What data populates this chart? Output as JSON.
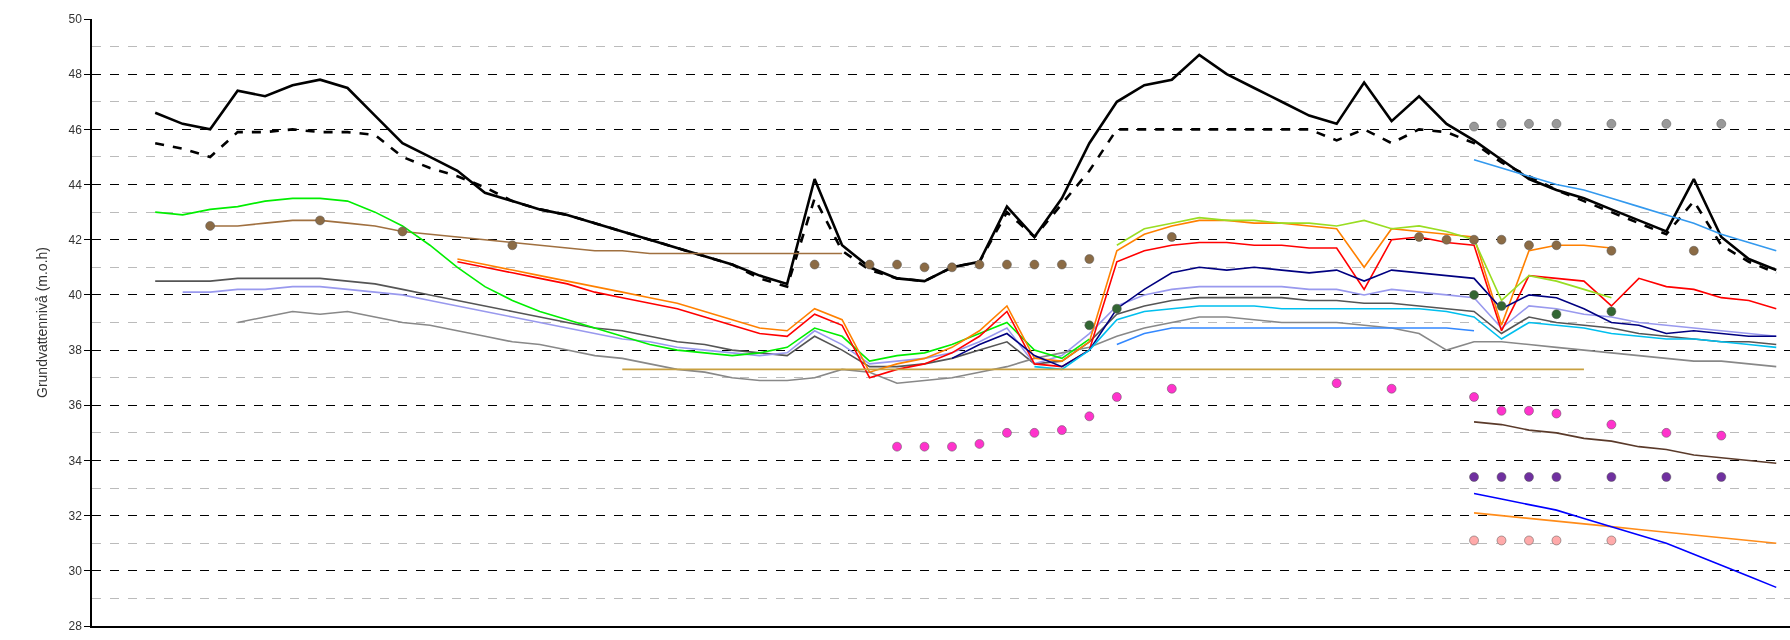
{
  "chart_data": {
    "type": "line",
    "ylabel": "Grundvattennivå (m.o.h)",
    "categories": [
      null,
      null,
      null,
      null,
      null,
      null,
      null,
      null,
      null,
      null,
      null,
      null,
      null,
      null,
      null,
      null,
      null,
      null,
      null,
      null,
      null,
      null,
      null,
      null,
      null,
      null,
      null,
      null,
      null,
      null,
      null,
      null,
      null,
      null,
      null,
      null,
      null,
      null,
      null,
      null,
      null,
      null,
      null,
      null,
      null,
      null,
      null,
      null,
      null,
      null,
      null,
      null,
      null,
      null,
      null,
      null,
      null,
      null,
      null,
      null
    ],
    "ylim": [
      28,
      50
    ],
    "yticks": [
      28,
      {
        "value": 29,
        "label": null
      },
      30,
      {
        "value": 31,
        "label": null
      },
      32,
      {
        "value": 33,
        "label": null
      },
      34,
      {
        "value": 35,
        "label": null
      },
      36,
      {
        "value": 37,
        "label": null
      },
      38,
      {
        "value": 39,
        "label": null
      },
      40,
      {
        "value": 41,
        "label": null
      },
      42,
      {
        "value": 43,
        "label": null
      },
      44,
      {
        "value": 45,
        "label": null
      },
      46,
      {
        "value": 47,
        "label": null
      },
      48,
      {
        "value": 49,
        "label": null
      },
      50
    ],
    "grid": "y",
    "tick_labels": "y",
    "series": [
      {
        "color": "#000000",
        "line_style": "solid",
        "values": [
          46.6,
          46.2,
          46.0,
          47.4,
          47.2,
          47.6,
          47.8,
          47.5,
          46.5,
          45.5,
          45.0,
          44.5,
          43.7,
          43.4,
          43.1,
          42.9,
          42.6,
          42.3,
          42.0,
          41.7,
          41.4,
          41.1,
          40.7,
          40.4,
          44.2,
          41.8,
          41.0,
          40.6,
          40.5,
          41.0,
          41.2,
          43.2,
          42.1,
          43.5,
          45.5,
          47.0,
          47.6,
          47.8,
          48.7,
          48.0,
          47.5,
          47.0,
          46.5,
          46.2,
          47.7,
          46.3,
          47.2,
          46.2,
          45.6,
          44.9,
          44.2,
          43.8,
          43.5,
          43.1,
          42.7,
          42.3,
          44.2,
          42.1,
          41.3,
          40.9
        ]
      },
      {
        "color": "#000000",
        "line_style": "dashed",
        "values": [
          45.5,
          45.3,
          45.0,
          45.9,
          45.9,
          46.0,
          45.9,
          45.9,
          45.8,
          45.0,
          44.6,
          44.3,
          43.9,
          43.4,
          43.1,
          42.9,
          42.6,
          42.3,
          42.0,
          41.7,
          41.4,
          41.1,
          40.6,
          40.3,
          43.5,
          41.6,
          40.9,
          40.6,
          40.5,
          41.0,
          41.2,
          43.0,
          42.1,
          43.3,
          44.5,
          46.0,
          46.0,
          46.0,
          46.0,
          46.0,
          46.0,
          46.0,
          46.0,
          45.6,
          46.0,
          45.5,
          46.0,
          45.9,
          45.5,
          44.8,
          44.3,
          43.8,
          43.4,
          43.0,
          42.6,
          42.2,
          43.4,
          41.8,
          41.2,
          40.8
        ]
      },
      {
        "color": "#a07040",
        "values": [
          null,
          null,
          42.5,
          42.5,
          42.6,
          42.7,
          42.7,
          42.6,
          42.5,
          42.3,
          42.2,
          42.1,
          42.0,
          41.9,
          41.8,
          41.7,
          41.6,
          41.6,
          41.5,
          41.5,
          41.5,
          41.5,
          41.5,
          41.5,
          41.5,
          41.5,
          null,
          null,
          null,
          null,
          null,
          null,
          null,
          null,
          null,
          null,
          null,
          null,
          null,
          null,
          null,
          null,
          null,
          null,
          null,
          null,
          null,
          null,
          null,
          null,
          null,
          null,
          null,
          null,
          null,
          null,
          null,
          null,
          null,
          null
        ]
      },
      {
        "color": "#555555",
        "values": [
          40.5,
          40.5,
          40.5,
          40.6,
          40.6,
          40.6,
          40.6,
          40.5,
          40.4,
          40.2,
          40.0,
          39.8,
          39.6,
          39.4,
          39.2,
          39.0,
          38.8,
          38.7,
          38.5,
          38.3,
          38.2,
          38.0,
          37.9,
          37.8,
          38.5,
          38.0,
          37.4,
          37.4,
          37.5,
          37.7,
          38.0,
          38.3,
          37.5,
          37.6,
          38.3,
          39.3,
          39.6,
          39.8,
          39.9,
          39.9,
          39.9,
          39.9,
          39.8,
          39.8,
          39.7,
          39.7,
          39.6,
          39.5,
          39.4,
          38.6,
          39.2,
          39.0,
          38.9,
          38.8,
          38.6,
          38.5,
          38.4,
          38.3,
          38.3,
          38.2
        ]
      },
      {
        "color": "#9999ee",
        "values": [
          null,
          40.1,
          40.1,
          40.2,
          40.2,
          40.3,
          40.3,
          40.2,
          40.1,
          40.0,
          39.8,
          39.6,
          39.4,
          39.2,
          39.0,
          38.8,
          38.6,
          38.4,
          38.3,
          38.1,
          38.0,
          37.9,
          37.8,
          37.9,
          38.7,
          38.2,
          37.5,
          37.6,
          37.7,
          37.9,
          38.3,
          38.8,
          37.5,
          37.8,
          38.6,
          39.6,
          40.0,
          40.2,
          40.3,
          40.3,
          40.3,
          40.3,
          40.2,
          40.2,
          40.0,
          40.2,
          40.1,
          40.0,
          39.9,
          38.8,
          39.6,
          39.5,
          39.3,
          39.2,
          39.0,
          38.9,
          38.8,
          38.7,
          38.6,
          38.5
        ]
      },
      {
        "color": "#888888",
        "values": [
          null,
          null,
          null,
          39.0,
          39.2,
          39.4,
          39.3,
          39.4,
          39.2,
          39.0,
          38.9,
          38.7,
          38.5,
          38.3,
          38.2,
          38.0,
          37.8,
          37.7,
          37.5,
          37.3,
          37.2,
          37.0,
          36.9,
          36.9,
          37.0,
          37.3,
          37.2,
          36.8,
          36.9,
          37.0,
          37.2,
          37.4,
          37.7,
          37.9,
          38.1,
          38.5,
          38.8,
          39.0,
          39.2,
          39.2,
          39.1,
          39.0,
          39.0,
          39.0,
          38.9,
          38.8,
          38.6,
          38.0,
          38.3,
          38.3,
          38.2,
          38.1,
          38.0,
          37.9,
          37.8,
          37.7,
          37.6,
          37.6,
          37.5,
          37.4
        ]
      },
      {
        "color": "#00ee00",
        "values": [
          43.0,
          42.9,
          43.1,
          43.2,
          43.4,
          43.5,
          43.5,
          43.4,
          43.0,
          42.5,
          41.8,
          41.0,
          40.3,
          39.8,
          39.4,
          39.1,
          38.8,
          38.5,
          38.2,
          38.0,
          37.9,
          37.8,
          37.9,
          38.1,
          38.8,
          38.5,
          37.6,
          37.8,
          37.9,
          38.2,
          38.6,
          39.0,
          38.0,
          37.7,
          38.4,
          null,
          null,
          null,
          null,
          null,
          null,
          null,
          null,
          null,
          null,
          null,
          null,
          null,
          null,
          null,
          null,
          null,
          null,
          null,
          null,
          null,
          null,
          null,
          null,
          null
        ]
      },
      {
        "color": "#ff8000",
        "values": [
          null,
          null,
          null,
          null,
          null,
          null,
          null,
          null,
          null,
          null,
          null,
          41.3,
          41.1,
          40.9,
          40.7,
          40.5,
          40.3,
          40.1,
          39.9,
          39.7,
          39.4,
          39.1,
          38.8,
          38.7,
          39.5,
          39.1,
          37.2,
          37.5,
          37.7,
          38.1,
          38.7,
          39.6,
          37.7,
          37.6,
          38.3,
          41.6,
          42.2,
          42.5,
          42.7,
          42.7,
          42.6,
          42.6,
          42.5,
          42.4,
          41.0,
          42.4,
          42.3,
          42.2,
          42.1,
          38.9,
          41.6,
          41.8,
          41.8,
          41.7,
          null,
          null,
          null,
          null,
          null,
          null
        ]
      },
      {
        "color": "#ff0000",
        "values": [
          null,
          null,
          null,
          null,
          null,
          null,
          null,
          null,
          null,
          null,
          null,
          41.2,
          41.0,
          40.8,
          40.6,
          40.4,
          40.1,
          39.9,
          39.7,
          39.5,
          39.2,
          38.9,
          38.6,
          38.5,
          39.3,
          38.9,
          37.0,
          37.3,
          37.5,
          37.9,
          38.5,
          39.4,
          37.5,
          37.4,
          38.0,
          41.2,
          41.6,
          41.8,
          41.9,
          41.9,
          41.8,
          41.8,
          41.7,
          41.7,
          40.2,
          42.0,
          42.1,
          41.9,
          41.8,
          38.7,
          40.7,
          40.6,
          40.5,
          39.6,
          40.6,
          40.3,
          40.2,
          39.9,
          39.8,
          39.5
        ]
      },
      {
        "color": "#99dd22",
        "values": [
          null,
          null,
          null,
          null,
          null,
          null,
          null,
          null,
          null,
          null,
          null,
          null,
          null,
          null,
          null,
          null,
          null,
          null,
          null,
          null,
          null,
          null,
          null,
          null,
          null,
          null,
          null,
          null,
          null,
          null,
          null,
          null,
          null,
          null,
          null,
          41.8,
          42.4,
          42.6,
          42.8,
          42.7,
          42.7,
          42.6,
          42.6,
          42.5,
          42.7,
          42.4,
          42.5,
          42.3,
          42.0,
          39.8,
          40.7,
          40.5,
          40.2,
          39.9,
          null,
          null,
          null,
          null,
          null,
          null
        ]
      },
      {
        "color": "#000080",
        "values": [
          null,
          null,
          null,
          null,
          null,
          null,
          null,
          null,
          null,
          null,
          null,
          null,
          null,
          null,
          null,
          null,
          null,
          null,
          null,
          null,
          null,
          null,
          null,
          null,
          null,
          null,
          null,
          null,
          null,
          37.7,
          38.2,
          38.6,
          37.8,
          37.4,
          38.0,
          39.5,
          40.2,
          40.8,
          41.0,
          40.9,
          41.0,
          40.9,
          40.8,
          40.9,
          40.5,
          40.9,
          40.8,
          40.7,
          40.6,
          39.5,
          40.0,
          39.9,
          39.5,
          39.0,
          38.9,
          38.6,
          38.7,
          38.6,
          38.5,
          38.5
        ]
      },
      {
        "color": "#3388ff",
        "values": [
          null,
          null,
          null,
          null,
          null,
          null,
          null,
          null,
          null,
          null,
          null,
          null,
          null,
          null,
          null,
          null,
          null,
          null,
          null,
          null,
          null,
          null,
          null,
          null,
          null,
          null,
          null,
          null,
          null,
          null,
          null,
          null,
          null,
          null,
          null,
          38.2,
          38.6,
          38.8,
          38.8,
          38.8,
          38.8,
          38.8,
          38.8,
          38.8,
          38.8,
          38.8,
          38.8,
          38.8,
          38.7,
          null,
          null,
          null,
          null,
          null,
          null,
          null,
          null,
          null,
          null,
          null
        ]
      },
      {
        "color": "#00bfee",
        "values": [
          null,
          null,
          null,
          null,
          null,
          null,
          null,
          null,
          null,
          null,
          null,
          null,
          null,
          null,
          null,
          null,
          null,
          null,
          null,
          null,
          null,
          null,
          null,
          null,
          null,
          null,
          null,
          null,
          null,
          null,
          null,
          null,
          37.4,
          37.3,
          38.0,
          39.1,
          39.4,
          39.5,
          39.6,
          39.6,
          39.6,
          39.5,
          39.5,
          39.5,
          39.5,
          39.5,
          39.5,
          39.4,
          39.2,
          38.4,
          39.0,
          38.9,
          38.8,
          38.6,
          38.5,
          38.4,
          38.4,
          38.3,
          38.2,
          38.1
        ]
      },
      {
        "color": "#c8a040",
        "values": [
          null,
          null,
          null,
          null,
          null,
          null,
          null,
          null,
          null,
          null,
          null,
          null,
          null,
          null,
          null,
          null,
          null,
          37.3,
          37.3,
          37.3,
          37.3,
          37.3,
          37.3,
          37.3,
          37.3,
          37.3,
          37.3,
          37.3,
          37.3,
          37.3,
          37.3,
          37.3,
          37.3,
          37.3,
          37.3,
          37.3,
          37.3,
          37.3,
          37.3,
          37.3,
          37.3,
          37.3,
          37.3,
          37.3,
          37.3,
          37.3,
          37.3,
          37.3,
          37.3,
          37.3,
          37.3,
          37.3,
          37.3,
          null,
          null,
          null,
          null,
          null,
          null,
          null
        ]
      },
      {
        "color": "#3399ee",
        "values": [
          null,
          null,
          null,
          null,
          null,
          null,
          null,
          null,
          null,
          null,
          null,
          null,
          null,
          null,
          null,
          null,
          null,
          null,
          null,
          null,
          null,
          null,
          null,
          null,
          null,
          null,
          null,
          null,
          null,
          null,
          null,
          null,
          null,
          null,
          null,
          null,
          null,
          null,
          null,
          null,
          null,
          null,
          null,
          null,
          null,
          null,
          null,
          null,
          44.9,
          44.6,
          44.3,
          44.0,
          43.8,
          43.5,
          43.2,
          42.9,
          42.6,
          42.2,
          41.9,
          41.6
        ]
      },
      {
        "color": "#5a3a2a",
        "values": [
          null,
          null,
          null,
          null,
          null,
          null,
          null,
          null,
          null,
          null,
          null,
          null,
          null,
          null,
          null,
          null,
          null,
          null,
          null,
          null,
          null,
          null,
          null,
          null,
          null,
          null,
          null,
          null,
          null,
          null,
          null,
          null,
          null,
          null,
          null,
          null,
          null,
          null,
          null,
          null,
          null,
          null,
          null,
          null,
          null,
          null,
          null,
          null,
          35.4,
          35.3,
          35.1,
          35.0,
          34.8,
          34.7,
          34.5,
          34.4,
          34.2,
          34.1,
          34.0,
          33.9
        ]
      },
      {
        "color": "#ff8c1a",
        "values": [
          null,
          null,
          null,
          null,
          null,
          null,
          null,
          null,
          null,
          null,
          null,
          null,
          null,
          null,
          null,
          null,
          null,
          null,
          null,
          null,
          null,
          null,
          null,
          null,
          null,
          null,
          null,
          null,
          null,
          null,
          null,
          null,
          null,
          null,
          null,
          null,
          null,
          null,
          null,
          null,
          null,
          null,
          null,
          null,
          null,
          null,
          null,
          null,
          32.1,
          32.0,
          31.9,
          31.8,
          31.7,
          31.6,
          31.5,
          31.4,
          31.3,
          31.2,
          31.1,
          31.0
        ]
      },
      {
        "color": "#0000ff",
        "values": [
          null,
          null,
          null,
          null,
          null,
          null,
          null,
          null,
          null,
          null,
          null,
          null,
          null,
          null,
          null,
          null,
          null,
          null,
          null,
          null,
          null,
          null,
          null,
          null,
          null,
          null,
          null,
          null,
          null,
          null,
          null,
          null,
          null,
          null,
          null,
          null,
          null,
          null,
          null,
          null,
          null,
          null,
          null,
          null,
          null,
          null,
          null,
          null,
          32.8,
          32.6,
          32.4,
          32.2,
          31.9,
          31.6,
          31.3,
          31.0,
          30.6,
          30.2,
          29.8,
          29.4
        ]
      },
      {
        "type": "scatter",
        "marker": "circle",
        "color": "#8b6b45",
        "values": [
          null,
          null,
          42.5,
          null,
          null,
          null,
          42.7,
          null,
          null,
          42.3,
          null,
          null,
          null,
          41.8,
          null,
          null,
          null,
          null,
          null,
          null,
          null,
          null,
          null,
          null,
          41.1,
          null,
          41.1,
          41.1,
          41.0,
          41.0,
          41.1,
          41.1,
          41.1,
          41.1,
          41.3,
          null,
          null,
          42.1,
          null,
          null,
          null,
          null,
          null,
          null,
          null,
          null,
          42.1,
          42.0,
          42.0,
          42.0,
          41.8,
          41.8,
          null,
          41.6,
          null,
          null,
          41.6,
          null,
          null,
          null
        ]
      },
      {
        "type": "scatter",
        "marker": "circle",
        "color": "#ff33cc",
        "values": [
          null,
          null,
          null,
          null,
          null,
          null,
          null,
          null,
          null,
          null,
          null,
          null,
          null,
          null,
          null,
          null,
          null,
          null,
          null,
          null,
          null,
          null,
          null,
          null,
          null,
          null,
          null,
          34.5,
          34.5,
          34.5,
          34.6,
          35.0,
          35.0,
          35.1,
          35.6,
          36.3,
          null,
          36.6,
          null,
          null,
          null,
          null,
          null,
          36.8,
          null,
          36.6,
          null,
          null,
          36.3,
          35.8,
          35.8,
          35.7,
          null,
          35.3,
          null,
          35.0,
          null,
          34.9,
          null,
          null
        ]
      },
      {
        "type": "scatter",
        "marker": "circle",
        "color": "#336633",
        "values": [
          null,
          null,
          null,
          null,
          null,
          null,
          null,
          null,
          null,
          null,
          null,
          null,
          null,
          null,
          null,
          null,
          null,
          null,
          null,
          null,
          null,
          null,
          null,
          null,
          null,
          null,
          null,
          null,
          null,
          null,
          null,
          null,
          null,
          null,
          38.9,
          39.5,
          null,
          null,
          null,
          null,
          null,
          null,
          null,
          null,
          null,
          null,
          null,
          null,
          40.0,
          39.6,
          null,
          39.3,
          null,
          39.4,
          null,
          null,
          null,
          null,
          null,
          null
        ]
      },
      {
        "type": "scatter",
        "marker": "circle",
        "color": "#999999",
        "values": [
          null,
          null,
          null,
          null,
          null,
          null,
          null,
          null,
          null,
          null,
          null,
          null,
          null,
          null,
          null,
          null,
          null,
          null,
          null,
          null,
          null,
          null,
          null,
          null,
          null,
          null,
          null,
          null,
          null,
          null,
          null,
          null,
          null,
          null,
          null,
          null,
          null,
          null,
          null,
          null,
          null,
          null,
          null,
          null,
          null,
          null,
          null,
          null,
          46.1,
          46.2,
          46.2,
          46.2,
          null,
          46.2,
          null,
          46.2,
          null,
          46.2,
          null,
          null
        ]
      },
      {
        "type": "scatter",
        "marker": "circle",
        "color": "#7030a0",
        "values": [
          null,
          null,
          null,
          null,
          null,
          null,
          null,
          null,
          null,
          null,
          null,
          null,
          null,
          null,
          null,
          null,
          null,
          null,
          null,
          null,
          null,
          null,
          null,
          null,
          null,
          null,
          null,
          null,
          null,
          null,
          null,
          null,
          null,
          null,
          null,
          null,
          null,
          null,
          null,
          null,
          null,
          null,
          null,
          null,
          null,
          null,
          null,
          null,
          33.4,
          33.4,
          33.4,
          33.4,
          null,
          33.4,
          null,
          33.4,
          null,
          33.4,
          null,
          null
        ]
      },
      {
        "type": "scatter",
        "marker": "circle",
        "color": "#ffaaaa",
        "values": [
          null,
          null,
          null,
          null,
          null,
          null,
          null,
          null,
          null,
          null,
          null,
          null,
          null,
          null,
          null,
          null,
          null,
          null,
          null,
          null,
          null,
          null,
          null,
          null,
          null,
          null,
          null,
          null,
          null,
          null,
          null,
          null,
          null,
          null,
          null,
          null,
          null,
          null,
          null,
          null,
          null,
          null,
          null,
          null,
          null,
          null,
          null,
          null,
          31.1,
          31.1,
          31.1,
          31.1,
          null,
          31.1,
          null,
          null,
          null,
          null,
          null,
          null
        ]
      }
    ]
  }
}
